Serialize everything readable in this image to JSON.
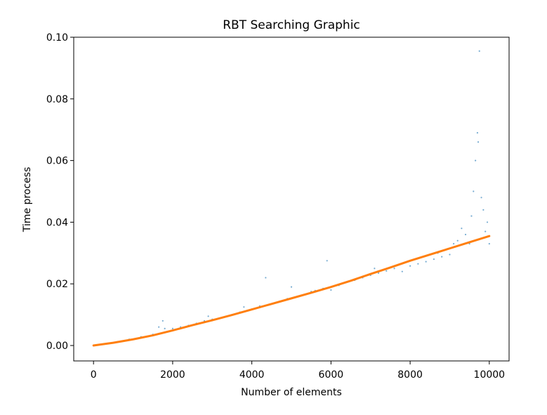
{
  "chart_data": {
    "type": "scatter",
    "title": "RBT Searching Graphic",
    "xlabel": "Number of elements",
    "ylabel": "Time process",
    "xlim": [
      -500,
      10500
    ],
    "ylim": [
      -0.005,
      0.1
    ],
    "xticks": [
      0,
      2000,
      4000,
      6000,
      8000,
      10000
    ],
    "yticks": [
      0.0,
      0.02,
      0.04,
      0.06,
      0.08,
      0.1
    ],
    "ytick_labels": [
      "0.00",
      "0.02",
      "0.04",
      "0.06",
      "0.08",
      "0.10"
    ],
    "grid": false,
    "legend": "none",
    "colors": {
      "scatter": "#1f77b4",
      "fit": "#ff7f0e"
    },
    "series": [
      {
        "type": "scatter",
        "x": [
          0,
          300,
          600,
          900,
          1200,
          1500,
          1650,
          1750,
          1800,
          2000,
          2200,
          2400,
          2600,
          2800,
          2900,
          3000,
          3300,
          3500,
          3700,
          3800,
          4000,
          4200,
          4350,
          4500,
          4700,
          4900,
          5000,
          5200,
          5400,
          5500,
          5600,
          5800,
          5900,
          6000,
          6200,
          6400,
          6600,
          6800,
          7000,
          7100,
          7200,
          7400,
          7600,
          7800,
          8000,
          8200,
          8400,
          8600,
          8700,
          8800,
          9000,
          9100,
          9200,
          9300,
          9400,
          9500,
          9550,
          9600,
          9650,
          9700,
          9720,
          9750,
          9800,
          9850,
          9900,
          9950,
          10000
        ],
        "y": [
          0.0,
          0.0005,
          0.0012,
          0.002,
          0.0028,
          0.0036,
          0.006,
          0.008,
          0.0055,
          0.0055,
          0.006,
          0.0065,
          0.0072,
          0.008,
          0.0095,
          0.0085,
          0.0092,
          0.01,
          0.0108,
          0.0125,
          0.0118,
          0.0128,
          0.022,
          0.0135,
          0.0143,
          0.0152,
          0.019,
          0.016,
          0.0168,
          0.0175,
          0.0178,
          0.0185,
          0.0275,
          0.018,
          0.0195,
          0.0205,
          0.0212,
          0.022,
          0.0228,
          0.025,
          0.0235,
          0.0242,
          0.025,
          0.024,
          0.0258,
          0.0265,
          0.0272,
          0.028,
          0.03,
          0.0288,
          0.0295,
          0.033,
          0.034,
          0.038,
          0.036,
          0.033,
          0.042,
          0.05,
          0.06,
          0.069,
          0.066,
          0.0955,
          0.048,
          0.044,
          0.037,
          0.04,
          0.033
        ]
      },
      {
        "type": "line",
        "x": [
          0,
          500,
          1000,
          1500,
          2000,
          2500,
          3000,
          3500,
          4000,
          4500,
          5000,
          5500,
          6000,
          6500,
          7000,
          7500,
          8000,
          8500,
          9000,
          9500,
          10000
        ],
        "y": [
          0.0,
          0.0009,
          0.002,
          0.0033,
          0.0049,
          0.0066,
          0.0082,
          0.0099,
          0.0117,
          0.0135,
          0.0153,
          0.0171,
          0.019,
          0.021,
          0.0232,
          0.0253,
          0.0275,
          0.0295,
          0.0315,
          0.0335,
          0.0355
        ]
      }
    ]
  }
}
